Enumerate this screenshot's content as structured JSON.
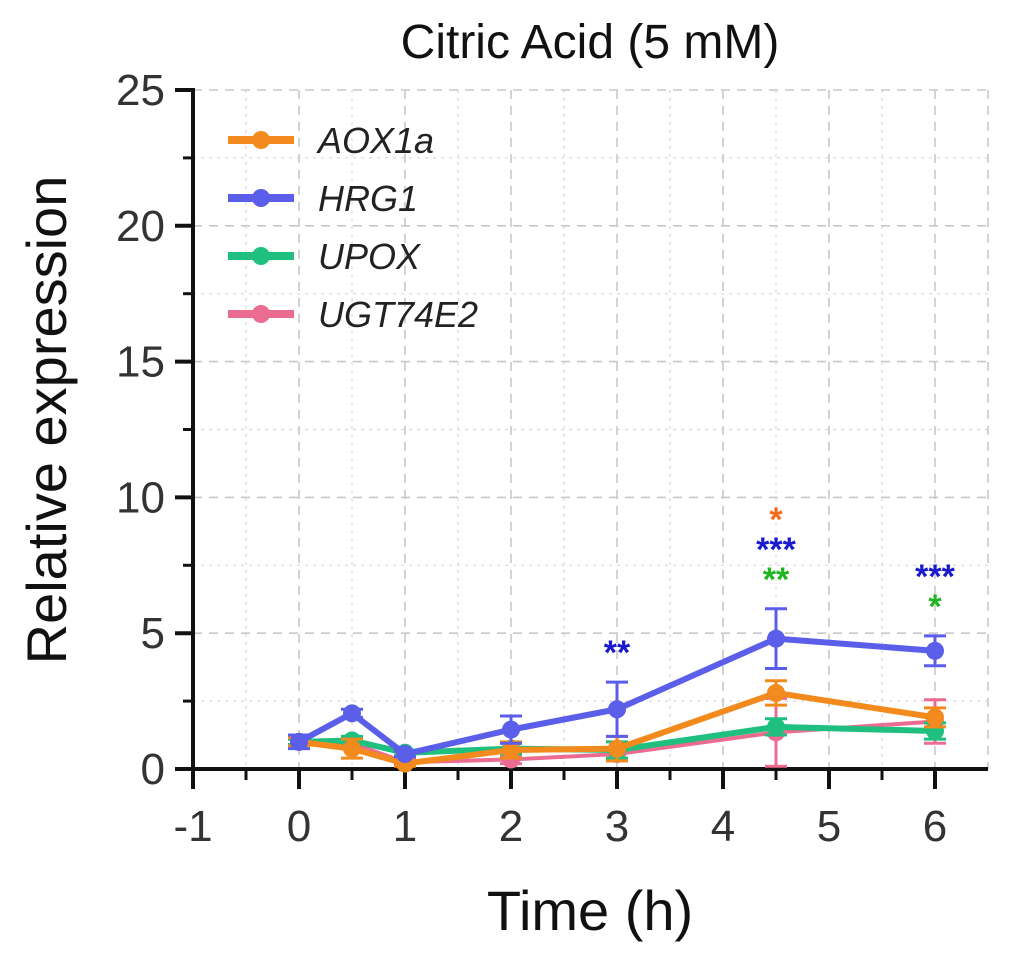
{
  "chart_data": {
    "type": "line",
    "title": "Citric Acid (5 mM)",
    "xlabel": "Time (h)",
    "ylabel": "Relative expression",
    "xlim": [
      -1,
      6.5
    ],
    "ylim": [
      0,
      25
    ],
    "xticks": [
      -1,
      0,
      1,
      2,
      3,
      4,
      5,
      6
    ],
    "yticks": [
      0,
      5,
      10,
      15,
      20,
      25
    ],
    "xtick_labels": [
      "-1",
      "0",
      "1",
      "2",
      "3",
      "4",
      "5",
      "6"
    ],
    "ytick_labels": [
      "0",
      "5",
      "10",
      "15",
      "20",
      "25"
    ],
    "grid": true,
    "legend_position": "top-left",
    "series": [
      {
        "name": "AOX1a",
        "color": "#f28a1e",
        "x": [
          0,
          0.5,
          1,
          2,
          3,
          4.5,
          6
        ],
        "y": [
          1.0,
          0.75,
          0.2,
          0.7,
          0.75,
          2.8,
          1.9
        ],
        "err": [
          0.15,
          0.35,
          0.1,
          0.3,
          0.45,
          0.45,
          0.35
        ]
      },
      {
        "name": "HRG1",
        "color": "#5b5ee8",
        "x": [
          0,
          0.5,
          1,
          2,
          3,
          4.5,
          6
        ],
        "y": [
          1.0,
          2.05,
          0.55,
          1.45,
          2.2,
          4.8,
          4.35
        ],
        "err": [
          0.25,
          0.15,
          0.1,
          0.5,
          1.0,
          1.1,
          0.55
        ]
      },
      {
        "name": "UPOX",
        "color": "#1fbf7f",
        "x": [
          0,
          0.5,
          1,
          2,
          3,
          4.5,
          6
        ],
        "y": [
          1.0,
          1.05,
          0.6,
          0.75,
          0.7,
          1.55,
          1.4
        ],
        "err": [
          0.1,
          0.15,
          0.1,
          0.2,
          0.3,
          0.3,
          0.3
        ]
      },
      {
        "name": "UGT74E2",
        "color": "#ec6b91",
        "x": [
          0,
          0.5,
          1,
          2,
          3,
          4.5,
          6
        ],
        "y": [
          1.0,
          0.95,
          0.25,
          0.35,
          0.55,
          1.35,
          1.75
        ],
        "err": [
          0.1,
          0.2,
          0.1,
          0.15,
          0.25,
          1.25,
          0.8
        ]
      }
    ],
    "annotations": [
      {
        "text": "**",
        "x": 3,
        "row": 0,
        "color": "#1a1acc"
      },
      {
        "text": "*",
        "x": 4.5,
        "row": 2,
        "color": "#f26b1d"
      },
      {
        "text": "***",
        "x": 4.5,
        "row": 1,
        "color": "#1a1acc"
      },
      {
        "text": "**",
        "x": 4.5,
        "row": 0,
        "color": "#22b522"
      },
      {
        "text": "***",
        "x": 6,
        "row": 1,
        "color": "#1a1acc"
      },
      {
        "text": "*",
        "x": 6,
        "row": 0,
        "color": "#22b522"
      }
    ]
  }
}
